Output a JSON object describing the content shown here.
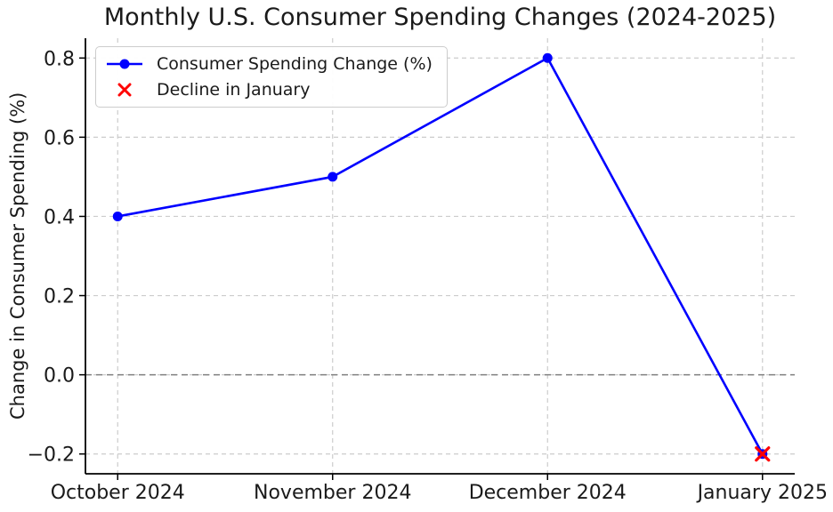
{
  "figure": {
    "background": "#ffffff"
  },
  "chart_data": {
    "type": "line",
    "title": "Monthly U.S. Consumer Spending Changes (2024-2025)",
    "xlabel": "",
    "ylabel": "Change in Consumer Spending (%)",
    "categories": [
      "October 2024",
      "November 2024",
      "December 2024",
      "January 2025"
    ],
    "series": [
      {
        "name": "Consumer Spending Change (%)",
        "type": "line",
        "marker": "circle",
        "color": "#0000ff",
        "values": [
          0.4,
          0.5,
          0.8,
          -0.2
        ]
      },
      {
        "name": "Decline in January",
        "type": "scatter",
        "marker": "x",
        "color": "#ff0000",
        "points": [
          {
            "category": "January 2025",
            "value": -0.2
          }
        ]
      }
    ],
    "ylim": [
      -0.25,
      0.85
    ],
    "xlim_pad": 0.15,
    "yticks": [
      -0.2,
      0.0,
      0.2,
      0.4,
      0.6,
      0.8
    ],
    "ytick_labels": [
      "−0.2",
      "0.0",
      "0.2",
      "0.4",
      "0.6",
      "0.8"
    ],
    "grid": {
      "show": true,
      "style": "dashed",
      "color": "#cccccc"
    },
    "zero_line": {
      "value": 0.0,
      "color": "#808080",
      "style": "dashed"
    },
    "legend": {
      "position": "upper-left"
    },
    "colors": {
      "line": "#0000ff",
      "decline": "#ff0000",
      "grid": "#cccccc",
      "zero_line": "#808080",
      "axis": "#000000",
      "text": "#1a1a1a"
    }
  }
}
